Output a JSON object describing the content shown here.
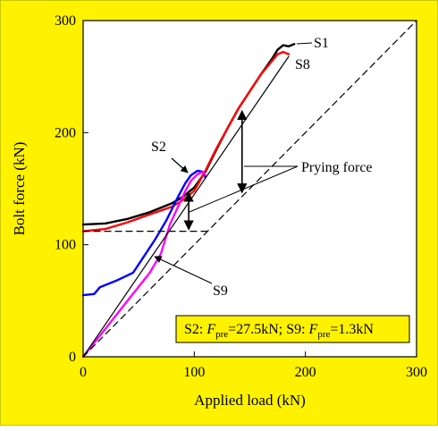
{
  "chart_data": {
    "type": "line",
    "title": "",
    "xlabel": "Applied load (kN)",
    "ylabel": "Bolt force (kN)",
    "xlim": [
      0,
      300
    ],
    "ylim": [
      0,
      300
    ],
    "xticks": [
      "0",
      "100",
      "200",
      "300"
    ],
    "yticks": [
      "0",
      "100",
      "200",
      "300"
    ],
    "grid": false,
    "background_color": "#FFF200",
    "plot_background_color": "#ffffff",
    "series": [
      {
        "name": "S1",
        "color": "#000000",
        "x": [
          0,
          20,
          40,
          60,
          80,
          90,
          100,
          110,
          120,
          130,
          140,
          150,
          160,
          170,
          175,
          180,
          185,
          190
        ],
        "y": [
          118,
          119,
          123,
          129,
          137,
          143,
          151,
          165,
          185,
          204,
          222,
          237,
          252,
          266,
          274,
          278,
          277,
          279
        ]
      },
      {
        "name": "S8",
        "color": "#ff0000",
        "x": [
          0,
          20,
          40,
          60,
          80,
          90,
          100,
          110,
          120,
          130,
          140,
          150,
          160,
          170,
          175,
          180,
          185
        ],
        "y": [
          112,
          114,
          120,
          127,
          134,
          140,
          148,
          166,
          186,
          204,
          222,
          237,
          252,
          264,
          270,
          272,
          270
        ]
      },
      {
        "name": "S2",
        "color": "#0000ff",
        "x": [
          0,
          10,
          15,
          30,
          45,
          55,
          65,
          75,
          85,
          92,
          97,
          103,
          108,
          110
        ],
        "y": [
          55,
          56,
          62,
          68,
          75,
          90,
          105,
          122,
          142,
          155,
          162,
          166,
          165,
          160
        ]
      },
      {
        "name": "S9",
        "color": "#ff00ff",
        "x": [
          0,
          20,
          40,
          60,
          70,
          78,
          85,
          92,
          97,
          103,
          108,
          110
        ],
        "y": [
          0,
          25,
          50,
          75,
          92,
          118,
          133,
          148,
          157,
          163,
          165,
          162
        ]
      },
      {
        "name": "",
        "color": "#000000",
        "style": "solid-thin",
        "x": [
          0,
          185
        ],
        "y": [
          0,
          268
        ]
      },
      {
        "name": "",
        "color": "#000000",
        "style": "dashed",
        "x": [
          0,
          300
        ],
        "y": [
          0,
          300
        ]
      },
      {
        "name": "",
        "color": "#000000",
        "style": "dashed",
        "x": [
          0,
          112
        ],
        "y": [
          112,
          112
        ]
      }
    ],
    "annotations": {
      "prying_label": "Prying force",
      "s1_label": "S1",
      "s8_label": "S8",
      "s2_label": "S2",
      "s9_label": "S9",
      "prying_arrows": [
        {
          "x": 95,
          "y_from": 112,
          "y_to": 148
        },
        {
          "x": 143,
          "y_from": 145,
          "y_to": 221
        }
      ],
      "legend_box": {
        "s2_name": "S2: ",
        "f_symbol": "F",
        "f_sub": "pre",
        "s2_value": "=27.5kN; S9: ",
        "s9_value": "=1.3kN"
      }
    }
  }
}
